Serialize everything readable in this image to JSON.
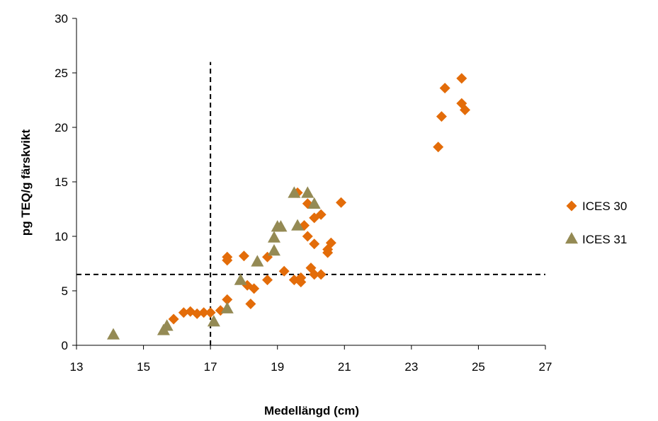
{
  "chart_data": {
    "type": "scatter",
    "xlabel": "Medellängd (cm)",
    "ylabel": "pg TEQ/g färskvikt",
    "xlim": [
      13,
      27
    ],
    "ylim": [
      0,
      30
    ],
    "xticks": [
      13,
      15,
      17,
      19,
      21,
      23,
      25,
      27
    ],
    "yticks": [
      0,
      5,
      10,
      15,
      20,
      25,
      30
    ],
    "grid": false,
    "legend_position": "right",
    "reference_lines": {
      "vertical_x": 17,
      "vertical_ymax": 26,
      "horizontal_y": 6.5
    },
    "series": [
      {
        "name": "ICES 30",
        "marker": "diamond",
        "color": "#e36c09",
        "points": [
          [
            15.9,
            2.4
          ],
          [
            16.2,
            3.0
          ],
          [
            16.4,
            3.1
          ],
          [
            16.6,
            2.9
          ],
          [
            16.8,
            3.0
          ],
          [
            17.0,
            3.0
          ],
          [
            17.3,
            3.2
          ],
          [
            17.5,
            4.2
          ],
          [
            17.5,
            7.8
          ],
          [
            17.5,
            8.1
          ],
          [
            18.0,
            8.2
          ],
          [
            18.1,
            5.5
          ],
          [
            18.2,
            3.8
          ],
          [
            18.3,
            5.2
          ],
          [
            18.7,
            6.0
          ],
          [
            18.7,
            8.1
          ],
          [
            19.2,
            6.8
          ],
          [
            19.5,
            6.0
          ],
          [
            19.6,
            14.0
          ],
          [
            19.7,
            5.8
          ],
          [
            19.7,
            6.2
          ],
          [
            19.8,
            11.0
          ],
          [
            19.9,
            13.0
          ],
          [
            19.9,
            10.0
          ],
          [
            20.0,
            7.1
          ],
          [
            20.1,
            6.5
          ],
          [
            20.1,
            9.3
          ],
          [
            20.1,
            11.7
          ],
          [
            20.3,
            12.0
          ],
          [
            20.3,
            6.5
          ],
          [
            20.5,
            8.5
          ],
          [
            20.5,
            8.8
          ],
          [
            20.6,
            9.4
          ],
          [
            20.9,
            13.1
          ],
          [
            23.8,
            18.2
          ],
          [
            23.9,
            21.0
          ],
          [
            24.0,
            23.6
          ],
          [
            24.5,
            24.5
          ],
          [
            24.5,
            22.2
          ],
          [
            24.6,
            21.6
          ]
        ]
      },
      {
        "name": "ICES 31",
        "marker": "triangle",
        "color": "#948a54",
        "points": [
          [
            14.1,
            1.0
          ],
          [
            15.6,
            1.4
          ],
          [
            15.7,
            1.8
          ],
          [
            17.1,
            2.2
          ],
          [
            17.5,
            3.4
          ],
          [
            17.9,
            6.0
          ],
          [
            18.4,
            7.7
          ],
          [
            18.9,
            8.7
          ],
          [
            18.9,
            9.9
          ],
          [
            19.0,
            10.9
          ],
          [
            19.1,
            10.9
          ],
          [
            19.5,
            14.0
          ],
          [
            19.6,
            11.0
          ],
          [
            19.9,
            14.0
          ],
          [
            20.1,
            13.0
          ]
        ]
      }
    ]
  }
}
